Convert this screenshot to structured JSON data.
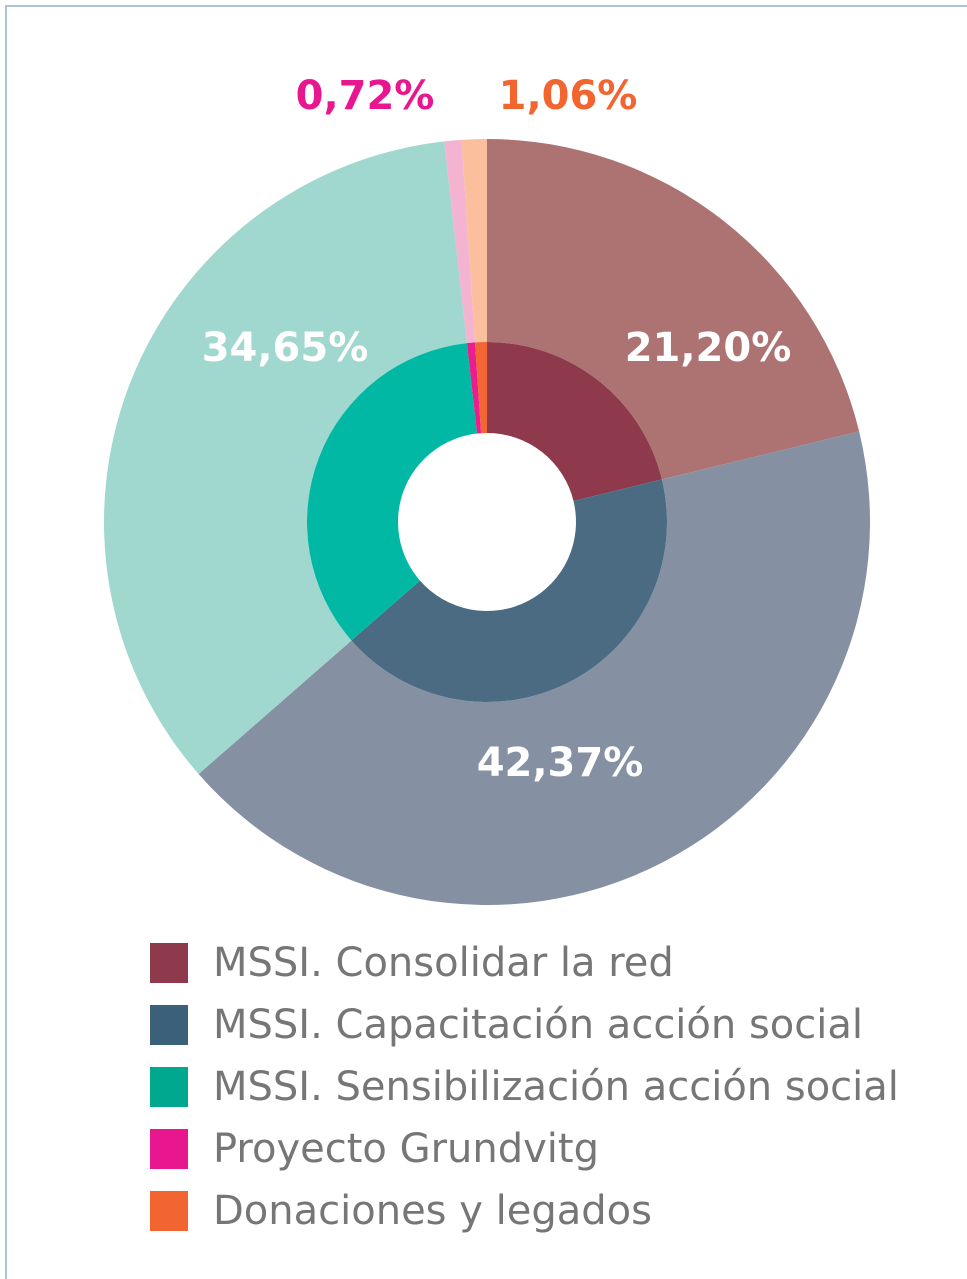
{
  "chart_data": {
    "type": "donut",
    "categories": [
      "MSSI. Consolidar la red",
      "MSSI. Capacitación acción social",
      "MSSI. Sensibilización acción social",
      "Proyecto Grundvitg",
      "Donaciones y legados"
    ],
    "values": [
      21.2,
      42.37,
      34.65,
      0.72,
      1.06
    ],
    "value_labels": [
      "21,20%",
      "42,37%",
      "34,65%",
      "0,72%",
      "1,06%"
    ],
    "colors": [
      "#8e3a4c",
      "#4a6b82",
      "#00b8a3",
      "#ea1e8c",
      "#f26534"
    ],
    "outer_colors": [
      "#ad7373",
      "#8591a3",
      "#a0d8cf",
      "#f4b3d1",
      "#fbbf9e"
    ],
    "legend_colors": [
      "#8e3a4c",
      "#3b6079",
      "#00a890",
      "#e8168f",
      "#f26530"
    ]
  }
}
